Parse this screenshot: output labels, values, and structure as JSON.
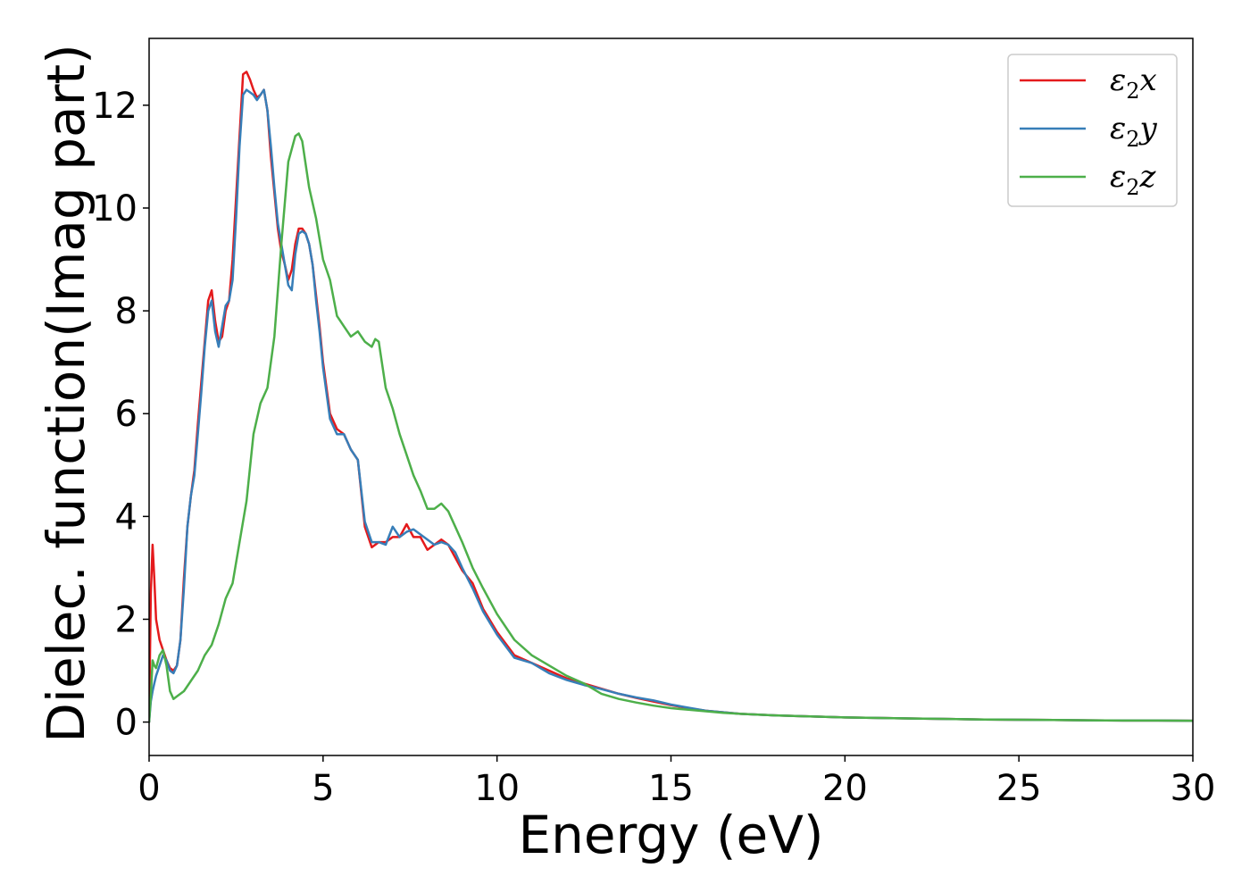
{
  "chart_data": {
    "type": "line",
    "xlabel": "Energy (eV)",
    "ylabel": "Dielec. function(Imag part)",
    "xlim": [
      0,
      30
    ],
    "ylim": [
      -0.65,
      13.3
    ],
    "xticks": [
      0,
      5,
      10,
      15,
      20,
      25,
      30
    ],
    "yticks": [
      0,
      2,
      4,
      6,
      8,
      10,
      12
    ],
    "grid": false,
    "legend_position": "top-right",
    "series": [
      {
        "name": "ε₂x",
        "legend_base": "ε",
        "legend_sub": "2",
        "legend_suffix": "x",
        "color": "#e41a1c",
        "x": [
          0,
          0.05,
          0.1,
          0.15,
          0.2,
          0.3,
          0.4,
          0.5,
          0.6,
          0.7,
          0.8,
          0.9,
          1.0,
          1.1,
          1.2,
          1.3,
          1.4,
          1.5,
          1.6,
          1.7,
          1.8,
          1.9,
          2.0,
          2.1,
          2.2,
          2.3,
          2.4,
          2.5,
          2.6,
          2.7,
          2.8,
          2.9,
          3.0,
          3.1,
          3.2,
          3.3,
          3.4,
          3.5,
          3.6,
          3.7,
          3.8,
          3.9,
          4.0,
          4.1,
          4.2,
          4.3,
          4.4,
          4.5,
          4.6,
          4.7,
          4.8,
          4.9,
          5.0,
          5.2,
          5.4,
          5.6,
          5.8,
          6.0,
          6.2,
          6.4,
          6.6,
          6.8,
          7.0,
          7.2,
          7.4,
          7.6,
          7.8,
          8.0,
          8.2,
          8.4,
          8.6,
          8.8,
          9.0,
          9.3,
          9.6,
          10.0,
          10.5,
          11.0,
          11.5,
          12.0,
          12.5,
          13.0,
          13.5,
          14.0,
          14.5,
          15.0,
          15.5,
          16.0,
          16.5,
          17.0,
          18.0,
          19.0,
          20.0,
          21.0,
          22.0,
          23.0,
          24.0,
          25.0,
          26.0,
          27.0,
          28.0,
          29.0,
          30.0
        ],
        "y": [
          0.0,
          2.5,
          3.45,
          2.8,
          2.0,
          1.6,
          1.4,
          1.2,
          1.05,
          1.0,
          1.1,
          1.6,
          2.8,
          3.8,
          4.4,
          4.9,
          5.8,
          6.6,
          7.4,
          8.2,
          8.4,
          7.8,
          7.4,
          7.5,
          8.0,
          8.2,
          9.0,
          10.2,
          11.4,
          12.6,
          12.65,
          12.5,
          12.3,
          12.15,
          12.2,
          12.3,
          11.9,
          11.0,
          10.3,
          9.6,
          9.15,
          8.9,
          8.6,
          8.8,
          9.3,
          9.6,
          9.6,
          9.5,
          9.3,
          8.9,
          8.3,
          7.7,
          7.0,
          6.0,
          5.7,
          5.6,
          5.3,
          5.1,
          3.8,
          3.4,
          3.5,
          3.5,
          3.6,
          3.6,
          3.85,
          3.6,
          3.6,
          3.35,
          3.45,
          3.55,
          3.45,
          3.2,
          2.95,
          2.7,
          2.2,
          1.75,
          1.3,
          1.15,
          1.0,
          0.85,
          0.75,
          0.65,
          0.55,
          0.47,
          0.4,
          0.33,
          0.27,
          0.22,
          0.19,
          0.16,
          0.13,
          0.11,
          0.09,
          0.08,
          0.07,
          0.06,
          0.05,
          0.045,
          0.04,
          0.035,
          0.03,
          0.03,
          0.025
        ]
      },
      {
        "name": "ε₂y",
        "legend_base": "ε",
        "legend_sub": "2",
        "legend_suffix": "y",
        "color": "#377eb8",
        "x": [
          0,
          0.05,
          0.1,
          0.15,
          0.2,
          0.3,
          0.4,
          0.5,
          0.6,
          0.7,
          0.8,
          0.9,
          1.0,
          1.1,
          1.2,
          1.3,
          1.4,
          1.5,
          1.6,
          1.7,
          1.8,
          1.9,
          2.0,
          2.1,
          2.2,
          2.3,
          2.4,
          2.5,
          2.6,
          2.7,
          2.8,
          2.9,
          3.0,
          3.1,
          3.2,
          3.3,
          3.4,
          3.5,
          3.6,
          3.7,
          3.8,
          3.9,
          4.0,
          4.1,
          4.2,
          4.3,
          4.4,
          4.5,
          4.6,
          4.7,
          4.8,
          4.9,
          5.0,
          5.2,
          5.4,
          5.6,
          5.8,
          6.0,
          6.2,
          6.4,
          6.6,
          6.8,
          7.0,
          7.2,
          7.4,
          7.6,
          7.8,
          8.0,
          8.2,
          8.4,
          8.6,
          8.8,
          9.0,
          9.3,
          9.6,
          10.0,
          10.5,
          11.0,
          11.5,
          12.0,
          12.5,
          13.0,
          13.5,
          14.0,
          14.5,
          15.0,
          15.5,
          16.0,
          16.5,
          17.0,
          18.0,
          19.0,
          20.0,
          21.0,
          22.0,
          23.0,
          24.0,
          25.0,
          26.0,
          27.0,
          28.0,
          29.0,
          30.0
        ],
        "y": [
          0.0,
          0.4,
          0.6,
          0.75,
          0.9,
          1.1,
          1.3,
          1.2,
          1.0,
          0.95,
          1.1,
          1.6,
          2.6,
          3.8,
          4.4,
          4.8,
          5.6,
          6.4,
          7.3,
          8.0,
          8.2,
          7.6,
          7.3,
          7.7,
          8.1,
          8.2,
          8.6,
          9.8,
          11.2,
          12.2,
          12.3,
          12.25,
          12.2,
          12.1,
          12.2,
          12.3,
          11.9,
          11.2,
          10.4,
          9.7,
          9.3,
          8.9,
          8.5,
          8.4,
          9.1,
          9.5,
          9.55,
          9.5,
          9.3,
          8.9,
          8.2,
          7.6,
          6.9,
          5.9,
          5.6,
          5.6,
          5.3,
          5.1,
          3.9,
          3.5,
          3.5,
          3.45,
          3.8,
          3.6,
          3.7,
          3.75,
          3.65,
          3.55,
          3.45,
          3.5,
          3.45,
          3.3,
          3.0,
          2.6,
          2.15,
          1.7,
          1.25,
          1.15,
          0.95,
          0.82,
          0.72,
          0.64,
          0.55,
          0.48,
          0.42,
          0.34,
          0.28,
          0.22,
          0.19,
          0.16,
          0.13,
          0.11,
          0.09,
          0.08,
          0.07,
          0.06,
          0.05,
          0.045,
          0.04,
          0.035,
          0.03,
          0.03,
          0.025
        ]
      },
      {
        "name": "ε₂z",
        "legend_base": "ε",
        "legend_sub": "2",
        "legend_suffix": "z",
        "color": "#4daf4a",
        "x": [
          0,
          0.05,
          0.1,
          0.15,
          0.2,
          0.3,
          0.4,
          0.5,
          0.6,
          0.7,
          0.8,
          0.9,
          1.0,
          1.2,
          1.4,
          1.6,
          1.8,
          2.0,
          2.2,
          2.4,
          2.6,
          2.8,
          3.0,
          3.2,
          3.4,
          3.6,
          3.8,
          4.0,
          4.2,
          4.3,
          4.4,
          4.6,
          4.8,
          5.0,
          5.2,
          5.4,
          5.6,
          5.8,
          6.0,
          6.2,
          6.4,
          6.5,
          6.6,
          6.8,
          7.0,
          7.2,
          7.4,
          7.6,
          7.8,
          8.0,
          8.2,
          8.4,
          8.6,
          8.8,
          9.0,
          9.3,
          9.6,
          10.0,
          10.5,
          11.0,
          11.5,
          12.0,
          12.5,
          13.0,
          13.5,
          14.0,
          14.5,
          15.0,
          15.5,
          16.0,
          16.5,
          17.0,
          18.0,
          19.0,
          20.0,
          21.0,
          22.0,
          23.0,
          24.0,
          25.0,
          26.0,
          27.0,
          28.0,
          29.0,
          30.0
        ],
        "y": [
          0.0,
          0.5,
          1.2,
          1.1,
          1.05,
          1.3,
          1.4,
          1.1,
          0.6,
          0.45,
          0.5,
          0.55,
          0.6,
          0.8,
          1.0,
          1.3,
          1.5,
          1.9,
          2.4,
          2.7,
          3.5,
          4.3,
          5.6,
          6.2,
          6.5,
          7.5,
          9.3,
          10.9,
          11.4,
          11.45,
          11.3,
          10.4,
          9.8,
          9.0,
          8.6,
          7.9,
          7.7,
          7.5,
          7.6,
          7.4,
          7.3,
          7.45,
          7.4,
          6.5,
          6.1,
          5.6,
          5.2,
          4.8,
          4.5,
          4.15,
          4.15,
          4.25,
          4.1,
          3.8,
          3.5,
          3.0,
          2.6,
          2.1,
          1.6,
          1.3,
          1.1,
          0.9,
          0.75,
          0.55,
          0.45,
          0.38,
          0.32,
          0.27,
          0.24,
          0.21,
          0.18,
          0.16,
          0.13,
          0.11,
          0.09,
          0.08,
          0.07,
          0.06,
          0.05,
          0.045,
          0.04,
          0.035,
          0.03,
          0.03,
          0.025
        ]
      }
    ]
  }
}
